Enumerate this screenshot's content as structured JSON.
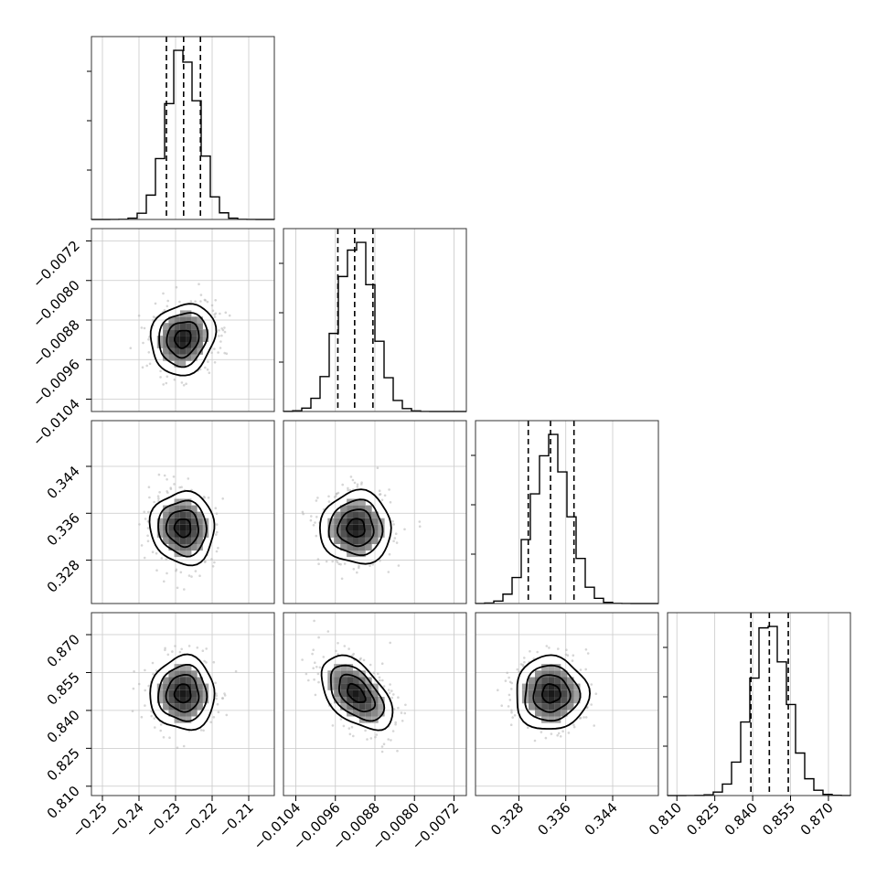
{
  "chart_data": {
    "type": "corner",
    "parameters": 4,
    "grid": true,
    "quantile_lines": "dashed",
    "axes": [
      {
        "range": [
          -0.253,
          -0.203
        ],
        "ticks": [
          -0.25,
          -0.24,
          -0.23,
          -0.22,
          -0.21
        ],
        "tick_labels": [
          "−0.25",
          "−0.24",
          "−0.23",
          "−0.22",
          "−0.21"
        ],
        "mean": -0.228,
        "sd": 0.0044,
        "quantiles": [
          -0.2325,
          -0.2278,
          -0.2232
        ]
      },
      {
        "range": [
          -0.01065,
          -0.00695
        ],
        "ticks": [
          -0.0104,
          -0.0096,
          -0.0088,
          -0.008,
          -0.0072
        ],
        "tick_labels": [
          "−0.0104",
          "−0.0096",
          "−0.0088",
          "−0.0080",
          "−0.0072"
        ],
        "mean": -0.00918,
        "sd": 0.00036,
        "quantiles": [
          -0.00955,
          -0.00921,
          -0.00884
        ]
      },
      {
        "range": [
          0.3206,
          0.3518
        ],
        "ticks": [
          0.328,
          0.336,
          0.344
        ],
        "tick_labels": [
          "0.328",
          "0.336",
          "0.344"
        ],
        "mean": 0.3335,
        "sd": 0.0031,
        "quantiles": [
          0.3296,
          0.3334,
          0.3374
        ]
      },
      {
        "range": [
          0.8063,
          0.8787
        ],
        "ticks": [
          0.81,
          0.825,
          0.84,
          0.855,
          0.87
        ],
        "tick_labels": [
          "0.810",
          "0.825",
          "0.840",
          "0.855",
          "0.870"
        ],
        "mean": 0.8467,
        "sd": 0.0073,
        "quantiles": [
          0.8393,
          0.8466,
          0.8541
        ]
      }
    ],
    "correlations": {
      "0-1": 0.12,
      "0-2": -0.05,
      "0-3": 0.0,
      "1-2": 0.0,
      "1-3": -0.5,
      "2-3": 0.0
    }
  }
}
